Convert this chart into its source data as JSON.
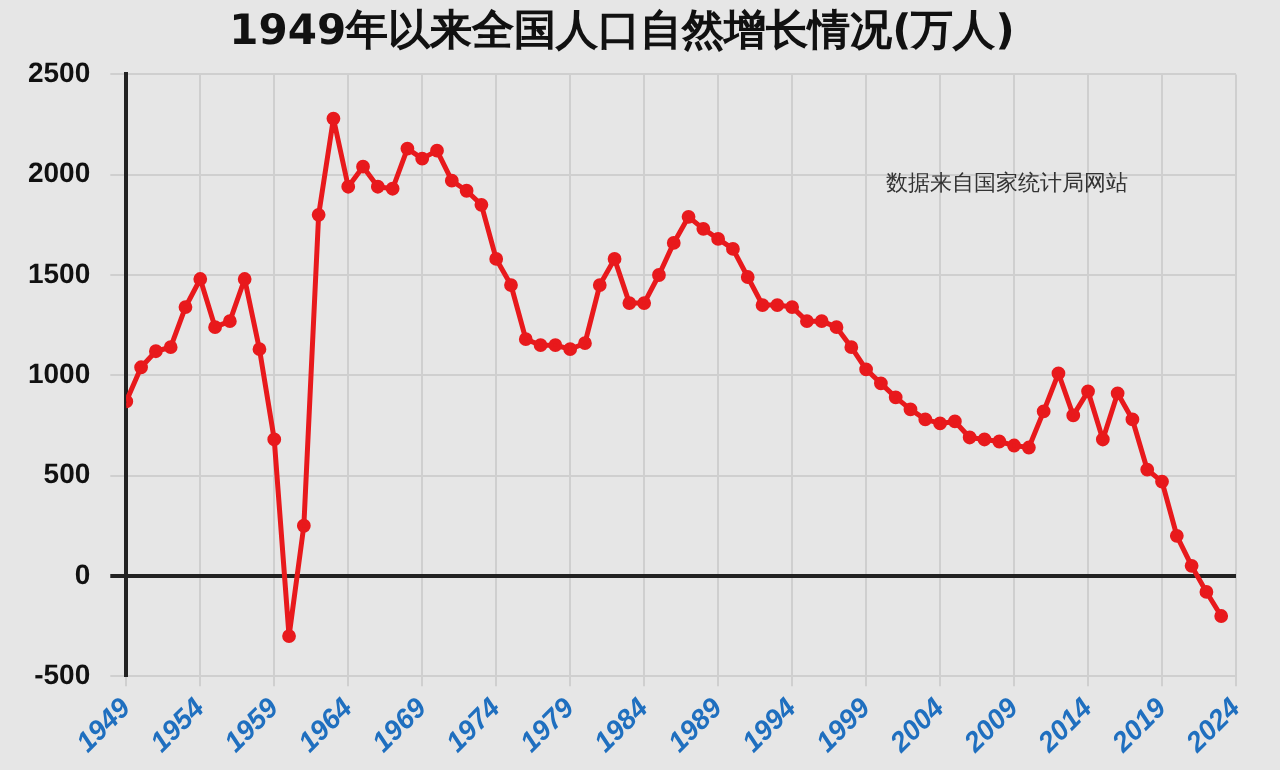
{
  "chart_data": {
    "type": "line",
    "title": "1949年以来全国人口自然增长情况(万人)",
    "x": [
      1949,
      1950,
      1951,
      1952,
      1953,
      1954,
      1955,
      1956,
      1957,
      1958,
      1959,
      1960,
      1961,
      1962,
      1963,
      1964,
      1965,
      1966,
      1967,
      1968,
      1969,
      1970,
      1971,
      1972,
      1973,
      1974,
      1975,
      1976,
      1977,
      1978,
      1979,
      1980,
      1981,
      1982,
      1983,
      1984,
      1985,
      1986,
      1987,
      1988,
      1989,
      1990,
      1991,
      1992,
      1993,
      1994,
      1995,
      1996,
      1997,
      1998,
      1999,
      2000,
      2001,
      2002,
      2003,
      2004,
      2005,
      2006,
      2007,
      2008,
      2009,
      2010,
      2011,
      2012,
      2013,
      2014,
      2015,
      2016,
      2017,
      2018,
      2019,
      2020,
      2021,
      2022,
      2023
    ],
    "series": [
      {
        "color": "#e8191c",
        "values": [
          870,
          1040,
          1120,
          1140,
          1340,
          1480,
          1240,
          1270,
          1480,
          1130,
          680,
          -300,
          250,
          1800,
          2280,
          1940,
          2040,
          1940,
          1930,
          2130,
          2080,
          2120,
          1970,
          1920,
          1850,
          1580,
          1450,
          1180,
          1150,
          1150,
          1130,
          1160,
          1450,
          1580,
          1360,
          1360,
          1500,
          1660,
          1790,
          1730,
          1680,
          1630,
          1490,
          1350,
          1350,
          1340,
          1270,
          1270,
          1240,
          1140,
          1030,
          960,
          890,
          830,
          780,
          760,
          770,
          690,
          680,
          670,
          650,
          640,
          820,
          1010,
          800,
          920,
          680,
          910,
          780,
          530,
          470,
          200,
          50,
          -80,
          -200
        ]
      }
    ],
    "xlim": [
      1949,
      2024
    ],
    "xticks": [
      1949,
      1954,
      1959,
      1964,
      1969,
      1974,
      1979,
      1984,
      1989,
      1994,
      1999,
      2004,
      2009,
      2014,
      2019,
      2024
    ],
    "ylim": [
      -500,
      2500
    ],
    "yticks": [
      -500,
      0,
      500,
      1000,
      1500,
      2000,
      2500
    ],
    "grid": true,
    "legend": false,
    "marker": "circle",
    "line_style": "solid",
    "annotations": [
      "数据来自国家统计局网站"
    ]
  }
}
